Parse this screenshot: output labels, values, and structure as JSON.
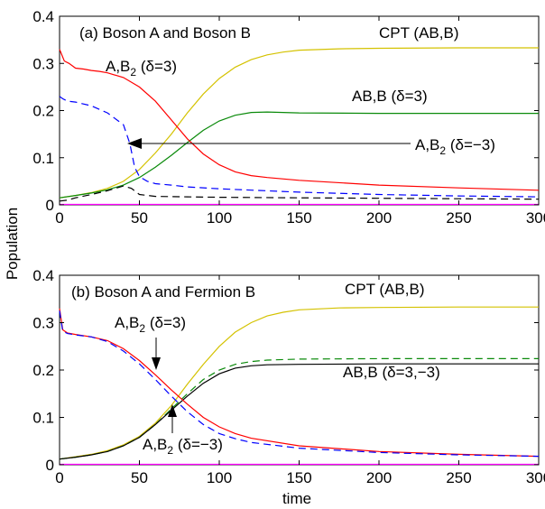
{
  "y_axis_label": "Population",
  "x_axis_label": "time",
  "chart_data": [
    {
      "type": "line",
      "panel_label": "(a) Boson A and Boson B",
      "xlim": [
        0,
        300
      ],
      "ylim": [
        0,
        0.4
      ],
      "x_ticks": [
        "0",
        "50",
        "100",
        "150",
        "200",
        "250",
        "300"
      ],
      "y_ticks": [
        "0",
        "0.1",
        "0.2",
        "0.3",
        "0.4"
      ],
      "grid": false,
      "annotations": [
        {
          "text": "CPT (AB,B)"
        },
        {
          "text": "AB,B (δ=3)"
        },
        {
          "text_main": "A,B",
          "subscript": "2",
          "text_tail": " (δ=3)"
        },
        {
          "text_main": "A,B",
          "subscript": "2",
          "text_tail": " (δ=−3)"
        }
      ],
      "series": [
        {
          "color": "#d4c200",
          "dash": "solid",
          "x": [
            0,
            10,
            20,
            30,
            40,
            50,
            60,
            70,
            80,
            90,
            100,
            110,
            120,
            130,
            140,
            150,
            175,
            200,
            250,
            300
          ],
          "y": [
            0.015,
            0.02,
            0.026,
            0.035,
            0.05,
            0.075,
            0.11,
            0.15,
            0.195,
            0.235,
            0.268,
            0.292,
            0.308,
            0.318,
            0.324,
            0.328,
            0.331,
            0.332,
            0.333,
            0.333
          ]
        },
        {
          "color": "#0a8a0a",
          "dash": "solid",
          "x": [
            0,
            10,
            20,
            30,
            40,
            50,
            60,
            70,
            80,
            90,
            100,
            110,
            120,
            130,
            140,
            150,
            200,
            250,
            300
          ],
          "y": [
            0.015,
            0.02,
            0.025,
            0.032,
            0.042,
            0.058,
            0.08,
            0.105,
            0.132,
            0.158,
            0.178,
            0.19,
            0.196,
            0.197,
            0.196,
            0.195,
            0.194,
            0.194,
            0.194
          ]
        },
        {
          "color": "#ff0000",
          "dash": "solid",
          "x": [
            0,
            3,
            6,
            10,
            15,
            20,
            25,
            30,
            40,
            50,
            60,
            70,
            80,
            90,
            100,
            110,
            120,
            130,
            150,
            200,
            250,
            300
          ],
          "y": [
            0.33,
            0.305,
            0.3,
            0.29,
            0.288,
            0.285,
            0.283,
            0.28,
            0.27,
            0.25,
            0.22,
            0.18,
            0.14,
            0.108,
            0.085,
            0.07,
            0.062,
            0.058,
            0.052,
            0.042,
            0.036,
            0.031
          ]
        },
        {
          "color": "#0000ff",
          "dash": "dashed",
          "x": [
            0,
            2,
            5,
            10,
            20,
            30,
            40,
            44,
            47,
            50,
            55,
            60,
            70,
            80,
            100,
            150,
            200,
            250,
            300
          ],
          "y": [
            0.23,
            0.225,
            0.22,
            0.218,
            0.21,
            0.195,
            0.17,
            0.13,
            0.08,
            0.06,
            0.05,
            0.045,
            0.042,
            0.038,
            0.034,
            0.027,
            0.022,
            0.019,
            0.017
          ]
        },
        {
          "color": "#000000",
          "dash": "dashed",
          "x": [
            0,
            5,
            10,
            20,
            30,
            40,
            45,
            50,
            60,
            80,
            100,
            150,
            200,
            250,
            300
          ],
          "y": [
            0.008,
            0.01,
            0.015,
            0.022,
            0.03,
            0.04,
            0.035,
            0.022,
            0.018,
            0.017,
            0.016,
            0.015,
            0.014,
            0.013,
            0.012
          ]
        },
        {
          "color": "#ff00ff",
          "dash": "solid",
          "x": [
            0,
            300
          ],
          "y": [
            0.001,
            0.001
          ]
        }
      ]
    },
    {
      "type": "line",
      "panel_label": "(b) Boson A and Fermion B",
      "xlim": [
        0,
        300
      ],
      "ylim": [
        0,
        0.4
      ],
      "x_ticks": [
        "0",
        "50",
        "100",
        "150",
        "200",
        "250",
        "300"
      ],
      "y_ticks": [
        "0",
        "0.1",
        "0.2",
        "0.3",
        "0.4"
      ],
      "grid": false,
      "annotations": [
        {
          "text": "CPT (AB,B)"
        },
        {
          "text_main": "A,B",
          "subscript": "2",
          "text_tail": " (δ=3)"
        },
        {
          "text": "AB,B (δ=3,−3)"
        },
        {
          "text_main": "A,B",
          "subscript": "2",
          "text_tail": " (δ=−3)"
        }
      ],
      "series": [
        {
          "color": "#d4c200",
          "dash": "solid",
          "x": [
            0,
            10,
            20,
            30,
            40,
            50,
            60,
            70,
            80,
            90,
            100,
            110,
            120,
            130,
            140,
            150,
            175,
            200,
            250,
            300
          ],
          "y": [
            0.012,
            0.017,
            0.022,
            0.03,
            0.042,
            0.06,
            0.088,
            0.125,
            0.17,
            0.212,
            0.25,
            0.28,
            0.3,
            0.314,
            0.322,
            0.327,
            0.331,
            0.332,
            0.333,
            0.333
          ]
        },
        {
          "color": "#0a8a0a",
          "dash": "dashed",
          "x": [
            0,
            10,
            20,
            30,
            40,
            50,
            60,
            70,
            80,
            90,
            100,
            110,
            120,
            130,
            150,
            200,
            250,
            300
          ],
          "y": [
            0.012,
            0.016,
            0.021,
            0.028,
            0.04,
            0.058,
            0.085,
            0.118,
            0.15,
            0.18,
            0.2,
            0.212,
            0.218,
            0.221,
            0.223,
            0.224,
            0.224,
            0.224
          ]
        },
        {
          "color": "#000000",
          "dash": "solid",
          "x": [
            0,
            10,
            20,
            30,
            40,
            50,
            60,
            70,
            80,
            90,
            100,
            110,
            120,
            130,
            150,
            200,
            250,
            300
          ],
          "y": [
            0.012,
            0.016,
            0.021,
            0.028,
            0.04,
            0.058,
            0.085,
            0.115,
            0.145,
            0.172,
            0.192,
            0.204,
            0.209,
            0.211,
            0.212,
            0.213,
            0.213,
            0.213
          ]
        },
        {
          "color": "#ff0000",
          "dash": "solid",
          "x": [
            0,
            2,
            5,
            10,
            20,
            30,
            40,
            50,
            60,
            70,
            80,
            90,
            100,
            110,
            120,
            150,
            200,
            250,
            300
          ],
          "y": [
            0.33,
            0.285,
            0.278,
            0.275,
            0.27,
            0.262,
            0.245,
            0.22,
            0.19,
            0.158,
            0.128,
            0.1,
            0.08,
            0.066,
            0.056,
            0.04,
            0.028,
            0.022,
            0.018
          ]
        },
        {
          "color": "#0000ff",
          "dash": "dashed",
          "x": [
            0,
            2,
            5,
            10,
            20,
            30,
            40,
            50,
            60,
            70,
            80,
            90,
            100,
            110,
            120,
            150,
            200,
            250,
            300
          ],
          "y": [
            0.325,
            0.282,
            0.277,
            0.274,
            0.27,
            0.26,
            0.24,
            0.213,
            0.18,
            0.145,
            0.112,
            0.085,
            0.066,
            0.055,
            0.047,
            0.035,
            0.026,
            0.021,
            0.018
          ]
        },
        {
          "color": "#ff00ff",
          "dash": "solid",
          "x": [
            0,
            300
          ],
          "y": [
            0.001,
            0.001
          ]
        }
      ]
    }
  ]
}
